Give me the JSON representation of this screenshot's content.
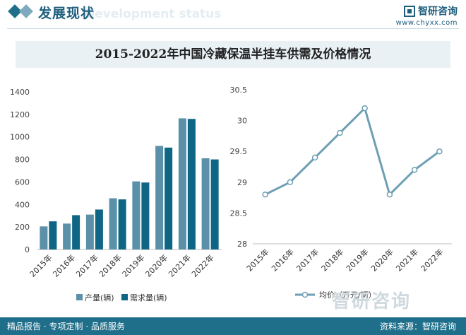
{
  "header": {
    "section_title": "发展现状",
    "section_subtitle": "Development status",
    "brand_name": "智研咨询",
    "brand_url": "www.chyxx.com"
  },
  "chart_title": "2015-2022年中国冷藏保温半挂车供需及价格情况",
  "footer": {
    "left": "精品报告 · 专项定制 · 品质服务",
    "source_label": "资料来源：智研咨询",
    "watermark": "智研咨询"
  },
  "colors": {
    "accent": "#1f6f8b",
    "bar_production": "#5a90a8",
    "bar_demand": "#0f6584",
    "line": "#6e9fb4"
  },
  "chart_data": [
    {
      "type": "bar",
      "categories": [
        "2015年",
        "2016年",
        "2017年",
        "2018年",
        "2019年",
        "2020年",
        "2021年",
        "2022年"
      ],
      "series": [
        {
          "name": "产量(辆)",
          "values": [
            205,
            230,
            310,
            455,
            605,
            920,
            1165,
            810
          ]
        },
        {
          "name": "需求量(辆)",
          "values": [
            250,
            305,
            355,
            445,
            595,
            905,
            1160,
            800
          ]
        }
      ],
      "ylim": [
        0,
        1400
      ],
      "yticks": [
        0,
        200,
        400,
        600,
        800,
        1000,
        1200,
        1400
      ],
      "legend": "bottom"
    },
    {
      "type": "line",
      "categories": [
        "2015年",
        "2016年",
        "2017年",
        "2018年",
        "2019年",
        "2020年",
        "2021年",
        "2022年"
      ],
      "series": [
        {
          "name": "均价（万元/辆）",
          "values": [
            28.8,
            29.0,
            29.4,
            29.8,
            30.2,
            28.8,
            29.2,
            29.5
          ]
        }
      ],
      "ylim": [
        28,
        30.5
      ],
      "yticks": [
        28,
        28.5,
        29,
        29.5,
        30,
        30.5
      ],
      "legend": "bottom"
    }
  ]
}
